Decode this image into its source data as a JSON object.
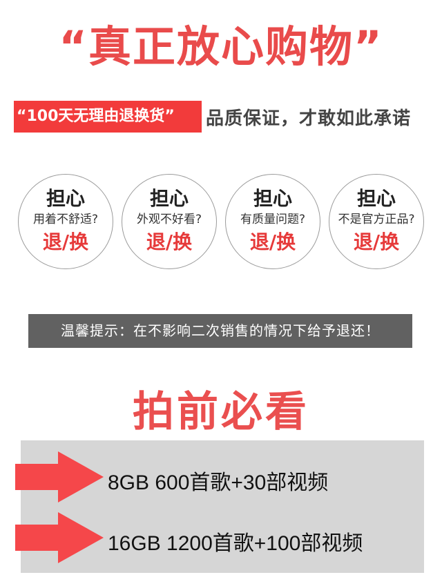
{
  "headline": "“真正放心购物”",
  "promise": {
    "highlight": "“100天无理由退换货”",
    "rest": "品质保证，才敢如此承诺"
  },
  "circles": [
    {
      "head": "担心",
      "question": "用着不舒适?",
      "action": "退/换"
    },
    {
      "head": "担心",
      "question": "外观不好看?",
      "action": "退/换"
    },
    {
      "head": "担心",
      "question": "有质量问题?",
      "action": "退/换"
    },
    {
      "head": "担心",
      "question": "不是官方正品?",
      "action": "退/换"
    }
  ],
  "notice": "温馨提示：在不影响二次销售的情况下给予退还！",
  "section_title": "拍前必看",
  "options": [
    {
      "text": "8GB  600首歌+30部视频"
    },
    {
      "text": "16GB 1200首歌+100部视频"
    }
  ],
  "colors": {
    "accent_red": "#e94b4b",
    "highlight_red": "#f23b3b",
    "arrow_red": "#f5474a",
    "notice_gray": "#616161",
    "panel_gray": "#d6d6d6"
  }
}
